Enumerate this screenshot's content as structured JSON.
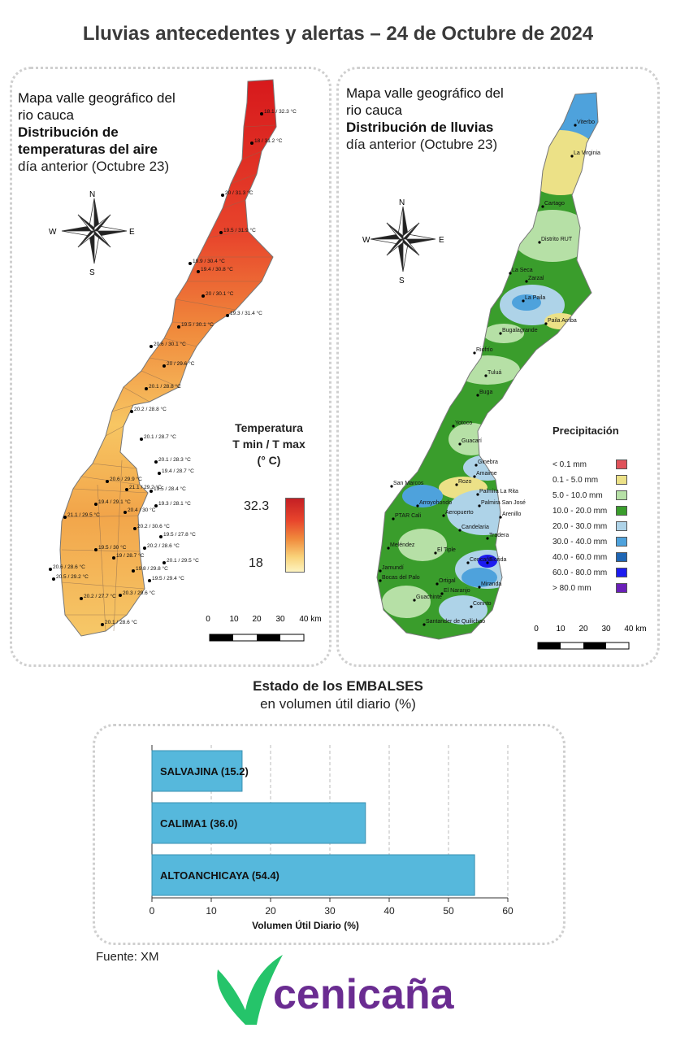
{
  "page": {
    "title": "Lluvias antecedentes y alertas – 24 de Octubre de 2024"
  },
  "temp_panel": {
    "line1": "Mapa valle geográfico del",
    "line2": "rio cauca",
    "line3": "Distribución de",
    "line4": "temperaturas del aire",
    "line5": "día anterior (Octubre 23)",
    "legend_title1": "Temperatura",
    "legend_title2": "T min / T max",
    "legend_title3": "(° C)",
    "legend_max": "32.3",
    "legend_min": "18",
    "scale_labels": [
      "0",
      "10",
      "20",
      "30",
      "40 km"
    ],
    "colors": {
      "high": "#d7191c",
      "mid": "#f08a3c",
      "low": "#fde9a0"
    },
    "stations": [
      "18.1 / 32.3 °C",
      "18 / 31.2 °C",
      "20 / 31.3 °C",
      "19.5 / 31.9 °C",
      "19.9 / 30.4 °C",
      "19.4 / 30.8 °C",
      "20 / 30.1 °C",
      "19.3 / 31.4 °C",
      "19.5 / 30.1 °C",
      "20.6 / 30.1 °C",
      "20 / 29.6 °C",
      "20.1 / 28.8 °C",
      "20.2 / 28.8 °C",
      "20.1 / 28.7 °C",
      "20.1 / 28.3 °C",
      "19.4 / 28.7 °C",
      "20.6 / 29.9 °C",
      "21.1 / 29.2 °C",
      "19.5 / 28.4 °C",
      "19.4 / 29.1 °C",
      "19.3 / 28.1 °C",
      "20.4 / 30 °C",
      "21.1 / 29.5 °C",
      "20.2 / 30.6 °C",
      "19.5 / 27.8 °C",
      "19.5 / 30 °C",
      "20.2 / 28.6 °C",
      "19 / 28.7 °C",
      "20.1 / 29.5 °C",
      "20.6 / 28.6 °C",
      "19.8 / 29.8 °C",
      "20.5 / 29.2 °C",
      "19.5 / 29.4 °C",
      "20.3 / 29.6 °C",
      "20.2 / 27.7 °C",
      "20.1 / 28.6 °C"
    ]
  },
  "rain_panel": {
    "line1": "Mapa valle geográfico del",
    "line2": "rio cauca",
    "line3": "Distribución de lluvias",
    "line4": "día anterior (Octubre 23)",
    "legend_title": "Precipitación",
    "legend": [
      {
        "label": "< 0.1 mm",
        "color": "#e0525a"
      },
      {
        "label": "0.1 - 5.0 mm",
        "color": "#ece187"
      },
      {
        "label": "5.0 - 10.0 mm",
        "color": "#b6e0a6"
      },
      {
        "label": "10.0 - 20.0 mm",
        "color": "#3a9d2c"
      },
      {
        "label": "20.0 - 30.0 mm",
        "color": "#aed3e8"
      },
      {
        "label": "30.0 - 40.0 mm",
        "color": "#4ea2dc"
      },
      {
        "label": "40.0 - 60.0 mm",
        "color": "#1f66b4"
      },
      {
        "label": "60.0 - 80.0 mm",
        "color": "#1c1cf0"
      },
      {
        "label": "> 80.0 mm",
        "color": "#6a1fb8"
      }
    ],
    "scale_labels": [
      "0",
      "10",
      "20",
      "30",
      "40 km"
    ],
    "places": [
      "Viterbo",
      "La Virginia",
      "Cartago",
      "Distrito RUT",
      "La Seca",
      "Zarzal",
      "La Paila",
      "Paila Arriba",
      "Bugalagrande",
      "Riofrío",
      "Tuluá",
      "Buga",
      "Yotoco",
      "Guacarí",
      "Ginebra",
      "Rozo",
      "Amaime",
      "San Marcos",
      "Palmira La Rita",
      "Arroyohondo",
      "Palmira San José",
      "Aeropuerto",
      "Arenillo",
      "PTAR Cali",
      "Candelaria",
      "Tradera",
      "Meléndez",
      "El Tiple",
      "Cencaña",
      "Florida",
      "Jamundí",
      "Bocas del Palo",
      "Ortigal",
      "Miranda",
      "El Naranjo",
      "Guachinte",
      "Corinto",
      "Santander de Quilichao"
    ]
  },
  "compass": {
    "n": "N",
    "s": "S",
    "e": "E",
    "w": "W"
  },
  "embalses": {
    "title": "Estado de los EMBALSES",
    "subtitle": "en volumen útil diario (%)",
    "source": "Fuente: XM"
  },
  "chart_data": {
    "type": "bar",
    "orientation": "horizontal",
    "categories": [
      "SALVAJINA (15.2)",
      "CALIMA1 (36.0)",
      "ALTOANCHICAYA (54.4)"
    ],
    "values": [
      15.2,
      36.0,
      54.4
    ],
    "xlabel": "Volumen Útil Diario (%)",
    "ylabel": "",
    "xlim": [
      0,
      60
    ],
    "xticks": [
      "0",
      "10",
      "20",
      "30",
      "40",
      "50",
      "60"
    ],
    "grid": "vertical dashed",
    "bar_color": "#56b8dc"
  },
  "logo": {
    "text": "cenicaña",
    "color": "#6a2c91",
    "leaf_color": "#25c46a"
  }
}
